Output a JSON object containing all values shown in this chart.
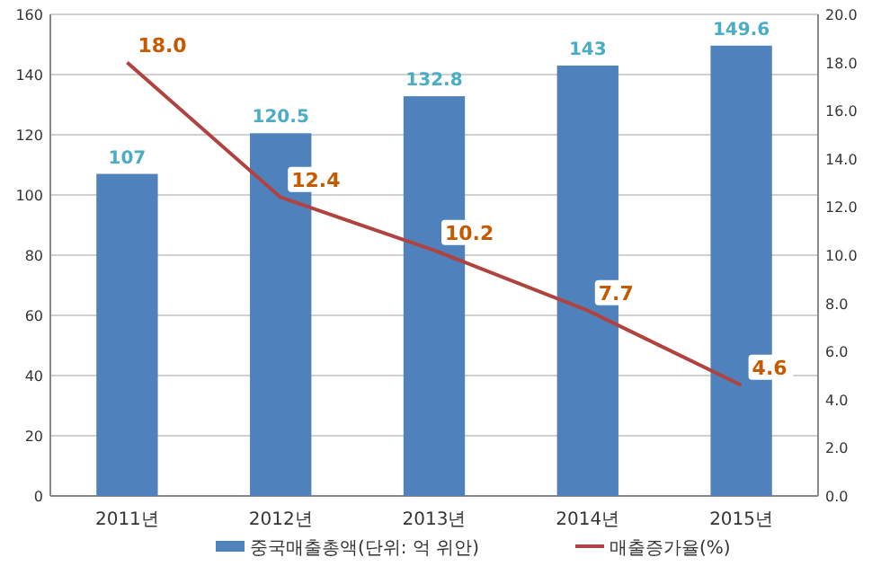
{
  "chart_data": {
    "type": "bar",
    "categories": [
      "2011년",
      "2012년",
      "2013년",
      "2014년",
      "2015년"
    ],
    "series": [
      {
        "name": "중국매출총액(단위: 억 위안)",
        "color": "#4f81bd",
        "values": [
          107,
          120.5,
          132.8,
          143,
          149.6
        ]
      },
      {
        "name": "매출증가율(%)",
        "type": "line",
        "axis": "y2",
        "color": "#b0433f",
        "values": [
          18.0,
          12.4,
          10.2,
          7.7,
          4.6
        ],
        "value_labels": [
          "18.0",
          "12.4",
          "10.2",
          "7.7",
          "4.6"
        ]
      }
    ],
    "ylim": [
      0,
      160
    ],
    "yticks": [
      0,
      20,
      40,
      60,
      80,
      100,
      120,
      140,
      160
    ],
    "y2lim": [
      0,
      20
    ],
    "y2ticks": [
      {
        "value": 0,
        "label": "0.0"
      },
      {
        "value": 2,
        "label": "2.0"
      },
      {
        "value": 4,
        "label": "4.0"
      },
      {
        "value": 6,
        "label": "6.0"
      },
      {
        "value": 8,
        "label": "8.0"
      },
      {
        "value": 10,
        "label": "10.0"
      },
      {
        "value": 12,
        "label": "12.0"
      },
      {
        "value": 14,
        "label": "14.0"
      },
      {
        "value": 16,
        "label": "16.0"
      },
      {
        "value": 18,
        "label": "18.0"
      },
      {
        "value": 20,
        "label": "20.0"
      }
    ],
    "grid": "y",
    "legend": "bottom",
    "data_labels": true,
    "marker": "none"
  }
}
